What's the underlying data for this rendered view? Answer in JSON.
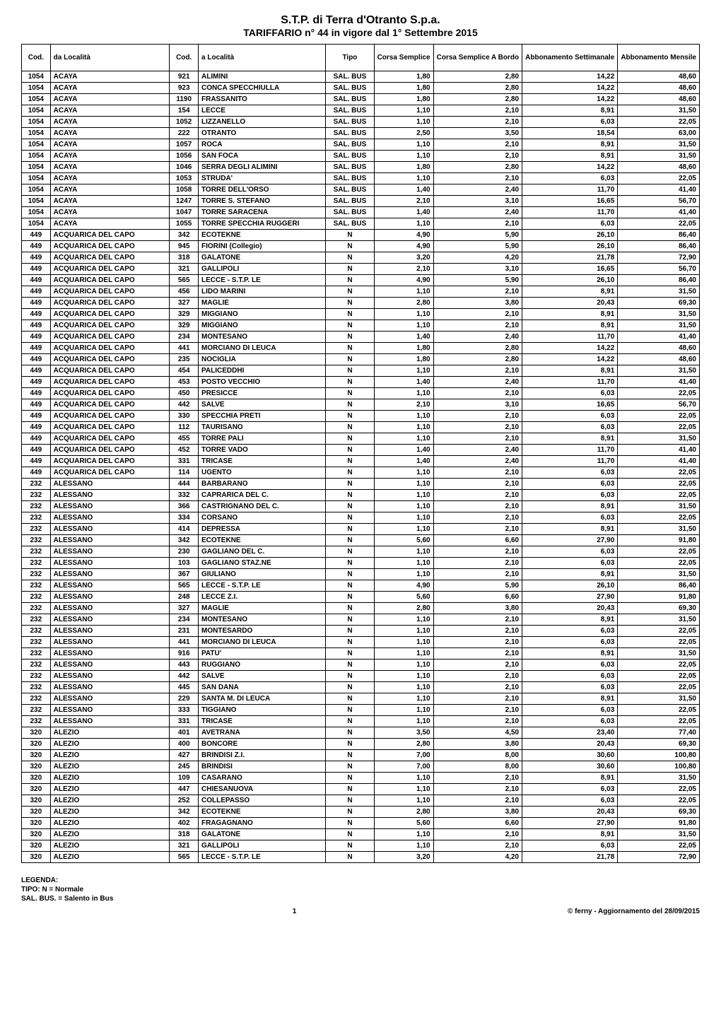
{
  "title": {
    "main": "S.T.P. di Terra d'Otranto S.p.a.",
    "sub": "TARIFFARIO n° 44 in vigore dal 1° Settembre 2015"
  },
  "columns": {
    "cod": "Cod.",
    "da": "da Località",
    "cod2": "Cod.",
    "a": "a Località",
    "tipo": "Tipo",
    "corsa_semplice": "Corsa Semplice",
    "corsa_bordo": "Corsa Semplice A Bordo",
    "abb_sett": "Abbonamento Settimanale",
    "abb_mens": "Abbonamento Mensile"
  },
  "legend": {
    "title": "LEGENDA:",
    "l1": "TIPO: N = Normale",
    "l2": "SAL. BUS. = Salento in Bus"
  },
  "footer": {
    "page": "1",
    "note": "© ferny - Aggiornamento del 28/09/2015"
  },
  "rows": [
    [
      "1054",
      "ACAYA",
      "921",
      "ALIMINI",
      "SAL. BUS",
      "1,80",
      "2,80",
      "14,22",
      "48,60"
    ],
    [
      "1054",
      "ACAYA",
      "923",
      "CONCA SPECCHIULLA",
      "SAL. BUS",
      "1,80",
      "2,80",
      "14,22",
      "48,60"
    ],
    [
      "1054",
      "ACAYA",
      "1190",
      "FRASSANITO",
      "SAL. BUS",
      "1,80",
      "2,80",
      "14,22",
      "48,60"
    ],
    [
      "1054",
      "ACAYA",
      "154",
      "LECCE",
      "SAL. BUS",
      "1,10",
      "2,10",
      "8,91",
      "31,50"
    ],
    [
      "1054",
      "ACAYA",
      "1052",
      "LIZZANELLO",
      "SAL. BUS",
      "1,10",
      "2,10",
      "6,03",
      "22,05"
    ],
    [
      "1054",
      "ACAYA",
      "222",
      "OTRANTO",
      "SAL. BUS",
      "2,50",
      "3,50",
      "18,54",
      "63,00"
    ],
    [
      "1054",
      "ACAYA",
      "1057",
      "ROCA",
      "SAL. BUS",
      "1,10",
      "2,10",
      "8,91",
      "31,50"
    ],
    [
      "1054",
      "ACAYA",
      "1056",
      "SAN FOCA",
      "SAL. BUS",
      "1,10",
      "2,10",
      "8,91",
      "31,50"
    ],
    [
      "1054",
      "ACAYA",
      "1046",
      "SERRA DEGLI ALIMINI",
      "SAL. BUS",
      "1,80",
      "2,80",
      "14,22",
      "48,60"
    ],
    [
      "1054",
      "ACAYA",
      "1053",
      "STRUDA'",
      "SAL. BUS",
      "1,10",
      "2,10",
      "6,03",
      "22,05"
    ],
    [
      "1054",
      "ACAYA",
      "1058",
      "TORRE DELL'ORSO",
      "SAL. BUS",
      "1,40",
      "2,40",
      "11,70",
      "41,40"
    ],
    [
      "1054",
      "ACAYA",
      "1247",
      "TORRE S. STEFANO",
      "SAL. BUS",
      "2,10",
      "3,10",
      "16,65",
      "56,70"
    ],
    [
      "1054",
      "ACAYA",
      "1047",
      "TORRE SARACENA",
      "SAL. BUS",
      "1,40",
      "2,40",
      "11,70",
      "41,40"
    ],
    [
      "1054",
      "ACAYA",
      "1055",
      "TORRE SPECCHIA RUGGERI",
      "SAL. BUS",
      "1,10",
      "2,10",
      "6,03",
      "22,05"
    ],
    [
      "449",
      "ACQUARICA DEL CAPO",
      "342",
      "ECOTEKNE",
      "N",
      "4,90",
      "5,90",
      "26,10",
      "86,40"
    ],
    [
      "449",
      "ACQUARICA DEL CAPO",
      "945",
      "FIORINI (Collegio)",
      "N",
      "4,90",
      "5,90",
      "26,10",
      "86,40"
    ],
    [
      "449",
      "ACQUARICA DEL CAPO",
      "318",
      "GALATONE",
      "N",
      "3,20",
      "4,20",
      "21,78",
      "72,90"
    ],
    [
      "449",
      "ACQUARICA DEL CAPO",
      "321",
      "GALLIPOLI",
      "N",
      "2,10",
      "3,10",
      "16,65",
      "56,70"
    ],
    [
      "449",
      "ACQUARICA DEL CAPO",
      "565",
      "LECCE - S.T.P. LE",
      "N",
      "4,90",
      "5,90",
      "26,10",
      "86,40"
    ],
    [
      "449",
      "ACQUARICA DEL CAPO",
      "456",
      "LIDO MARINI",
      "N",
      "1,10",
      "2,10",
      "8,91",
      "31,50"
    ],
    [
      "449",
      "ACQUARICA DEL CAPO",
      "327",
      "MAGLIE",
      "N",
      "2,80",
      "3,80",
      "20,43",
      "69,30"
    ],
    [
      "449",
      "ACQUARICA DEL CAPO",
      "329",
      "MIGGIANO",
      "N",
      "1,10",
      "2,10",
      "8,91",
      "31,50"
    ],
    [
      "449",
      "ACQUARICA DEL CAPO",
      "329",
      "MIGGIANO",
      "N",
      "1,10",
      "2,10",
      "8,91",
      "31,50"
    ],
    [
      "449",
      "ACQUARICA DEL CAPO",
      "234",
      "MONTESANO",
      "N",
      "1,40",
      "2,40",
      "11,70",
      "41,40"
    ],
    [
      "449",
      "ACQUARICA DEL CAPO",
      "441",
      "MORCIANO DI LEUCA",
      "N",
      "1,80",
      "2,80",
      "14,22",
      "48,60"
    ],
    [
      "449",
      "ACQUARICA DEL CAPO",
      "235",
      "NOCIGLIA",
      "N",
      "1,80",
      "2,80",
      "14,22",
      "48,60"
    ],
    [
      "449",
      "ACQUARICA DEL CAPO",
      "454",
      "PALICEDDHI",
      "N",
      "1,10",
      "2,10",
      "8,91",
      "31,50"
    ],
    [
      "449",
      "ACQUARICA DEL CAPO",
      "453",
      "POSTO VECCHIO",
      "N",
      "1,40",
      "2,40",
      "11,70",
      "41,40"
    ],
    [
      "449",
      "ACQUARICA DEL CAPO",
      "450",
      "PRESICCE",
      "N",
      "1,10",
      "2,10",
      "6,03",
      "22,05"
    ],
    [
      "449",
      "ACQUARICA DEL CAPO",
      "442",
      "SALVE",
      "N",
      "2,10",
      "3,10",
      "16,65",
      "56,70"
    ],
    [
      "449",
      "ACQUARICA DEL CAPO",
      "330",
      "SPECCHIA PRETI",
      "N",
      "1,10",
      "2,10",
      "6,03",
      "22,05"
    ],
    [
      "449",
      "ACQUARICA DEL CAPO",
      "112",
      "TAURISANO",
      "N",
      "1,10",
      "2,10",
      "6,03",
      "22,05"
    ],
    [
      "449",
      "ACQUARICA DEL CAPO",
      "455",
      "TORRE PALI",
      "N",
      "1,10",
      "2,10",
      "8,91",
      "31,50"
    ],
    [
      "449",
      "ACQUARICA DEL CAPO",
      "452",
      "TORRE VADO",
      "N",
      "1,40",
      "2,40",
      "11,70",
      "41,40"
    ],
    [
      "449",
      "ACQUARICA DEL CAPO",
      "331",
      "TRICASE",
      "N",
      "1,40",
      "2,40",
      "11,70",
      "41,40"
    ],
    [
      "449",
      "ACQUARICA DEL CAPO",
      "114",
      "UGENTO",
      "N",
      "1,10",
      "2,10",
      "6,03",
      "22,05"
    ],
    [
      "232",
      "ALESSANO",
      "444",
      "BARBARANO",
      "N",
      "1,10",
      "2,10",
      "6,03",
      "22,05"
    ],
    [
      "232",
      "ALESSANO",
      "332",
      "CAPRARICA DEL C.",
      "N",
      "1,10",
      "2,10",
      "6,03",
      "22,05"
    ],
    [
      "232",
      "ALESSANO",
      "366",
      "CASTRIGNANO DEL C.",
      "N",
      "1,10",
      "2,10",
      "8,91",
      "31,50"
    ],
    [
      "232",
      "ALESSANO",
      "334",
      "CORSANO",
      "N",
      "1,10",
      "2,10",
      "6,03",
      "22,05"
    ],
    [
      "232",
      "ALESSANO",
      "414",
      "DEPRESSA",
      "N",
      "1,10",
      "2,10",
      "8,91",
      "31,50"
    ],
    [
      "232",
      "ALESSANO",
      "342",
      "ECOTEKNE",
      "N",
      "5,60",
      "6,60",
      "27,90",
      "91,80"
    ],
    [
      "232",
      "ALESSANO",
      "230",
      "GAGLIANO DEL C.",
      "N",
      "1,10",
      "2,10",
      "6,03",
      "22,05"
    ],
    [
      "232",
      "ALESSANO",
      "103",
      "GAGLIANO STAZ.NE",
      "N",
      "1,10",
      "2,10",
      "6,03",
      "22,05"
    ],
    [
      "232",
      "ALESSANO",
      "367",
      "GIULIANO",
      "N",
      "1,10",
      "2,10",
      "8,91",
      "31,50"
    ],
    [
      "232",
      "ALESSANO",
      "565",
      "LECCE - S.T.P. LE",
      "N",
      "4,90",
      "5,90",
      "26,10",
      "86,40"
    ],
    [
      "232",
      "ALESSANO",
      "248",
      "LECCE Z.I.",
      "N",
      "5,60",
      "6,60",
      "27,90",
      "91,80"
    ],
    [
      "232",
      "ALESSANO",
      "327",
      "MAGLIE",
      "N",
      "2,80",
      "3,80",
      "20,43",
      "69,30"
    ],
    [
      "232",
      "ALESSANO",
      "234",
      "MONTESANO",
      "N",
      "1,10",
      "2,10",
      "8,91",
      "31,50"
    ],
    [
      "232",
      "ALESSANO",
      "231",
      "MONTESARDO",
      "N",
      "1,10",
      "2,10",
      "6,03",
      "22,05"
    ],
    [
      "232",
      "ALESSANO",
      "441",
      "MORCIANO DI LEUCA",
      "N",
      "1,10",
      "2,10",
      "6,03",
      "22,05"
    ],
    [
      "232",
      "ALESSANO",
      "916",
      "PATU'",
      "N",
      "1,10",
      "2,10",
      "8,91",
      "31,50"
    ],
    [
      "232",
      "ALESSANO",
      "443",
      "RUGGIANO",
      "N",
      "1,10",
      "2,10",
      "6,03",
      "22,05"
    ],
    [
      "232",
      "ALESSANO",
      "442",
      "SALVE",
      "N",
      "1,10",
      "2,10",
      "6,03",
      "22,05"
    ],
    [
      "232",
      "ALESSANO",
      "445",
      "SAN DANA",
      "N",
      "1,10",
      "2,10",
      "6,03",
      "22,05"
    ],
    [
      "232",
      "ALESSANO",
      "229",
      "SANTA M. DI LEUCA",
      "N",
      "1,10",
      "2,10",
      "8,91",
      "31,50"
    ],
    [
      "232",
      "ALESSANO",
      "333",
      "TIGGIANO",
      "N",
      "1,10",
      "2,10",
      "6,03",
      "22,05"
    ],
    [
      "232",
      "ALESSANO",
      "331",
      "TRICASE",
      "N",
      "1,10",
      "2,10",
      "6,03",
      "22,05"
    ],
    [
      "320",
      "ALEZIO",
      "401",
      "AVETRANA",
      "N",
      "3,50",
      "4,50",
      "23,40",
      "77,40"
    ],
    [
      "320",
      "ALEZIO",
      "400",
      "BONCORE",
      "N",
      "2,80",
      "3,80",
      "20,43",
      "69,30"
    ],
    [
      "320",
      "ALEZIO",
      "427",
      "BRINDISI Z.I.",
      "N",
      "7,00",
      "8,00",
      "30,60",
      "100,80"
    ],
    [
      "320",
      "ALEZIO",
      "245",
      "BRINDISI",
      "N",
      "7,00",
      "8,00",
      "30,60",
      "100,80"
    ],
    [
      "320",
      "ALEZIO",
      "109",
      "CASARANO",
      "N",
      "1,10",
      "2,10",
      "8,91",
      "31,50"
    ],
    [
      "320",
      "ALEZIO",
      "447",
      "CHIESANUOVA",
      "N",
      "1,10",
      "2,10",
      "6,03",
      "22,05"
    ],
    [
      "320",
      "ALEZIO",
      "252",
      "COLLEPASSO",
      "N",
      "1,10",
      "2,10",
      "6,03",
      "22,05"
    ],
    [
      "320",
      "ALEZIO",
      "342",
      "ECOTEKNE",
      "N",
      "2,80",
      "3,80",
      "20,43",
      "69,30"
    ],
    [
      "320",
      "ALEZIO",
      "402",
      "FRAGAGNANO",
      "N",
      "5,60",
      "6,60",
      "27,90",
      "91,80"
    ],
    [
      "320",
      "ALEZIO",
      "318",
      "GALATONE",
      "N",
      "1,10",
      "2,10",
      "8,91",
      "31,50"
    ],
    [
      "320",
      "ALEZIO",
      "321",
      "GALLIPOLI",
      "N",
      "1,10",
      "2,10",
      "6,03",
      "22,05"
    ],
    [
      "320",
      "ALEZIO",
      "565",
      "LECCE - S.T.P. LE",
      "N",
      "3,20",
      "4,20",
      "21,78",
      "72,90"
    ]
  ]
}
